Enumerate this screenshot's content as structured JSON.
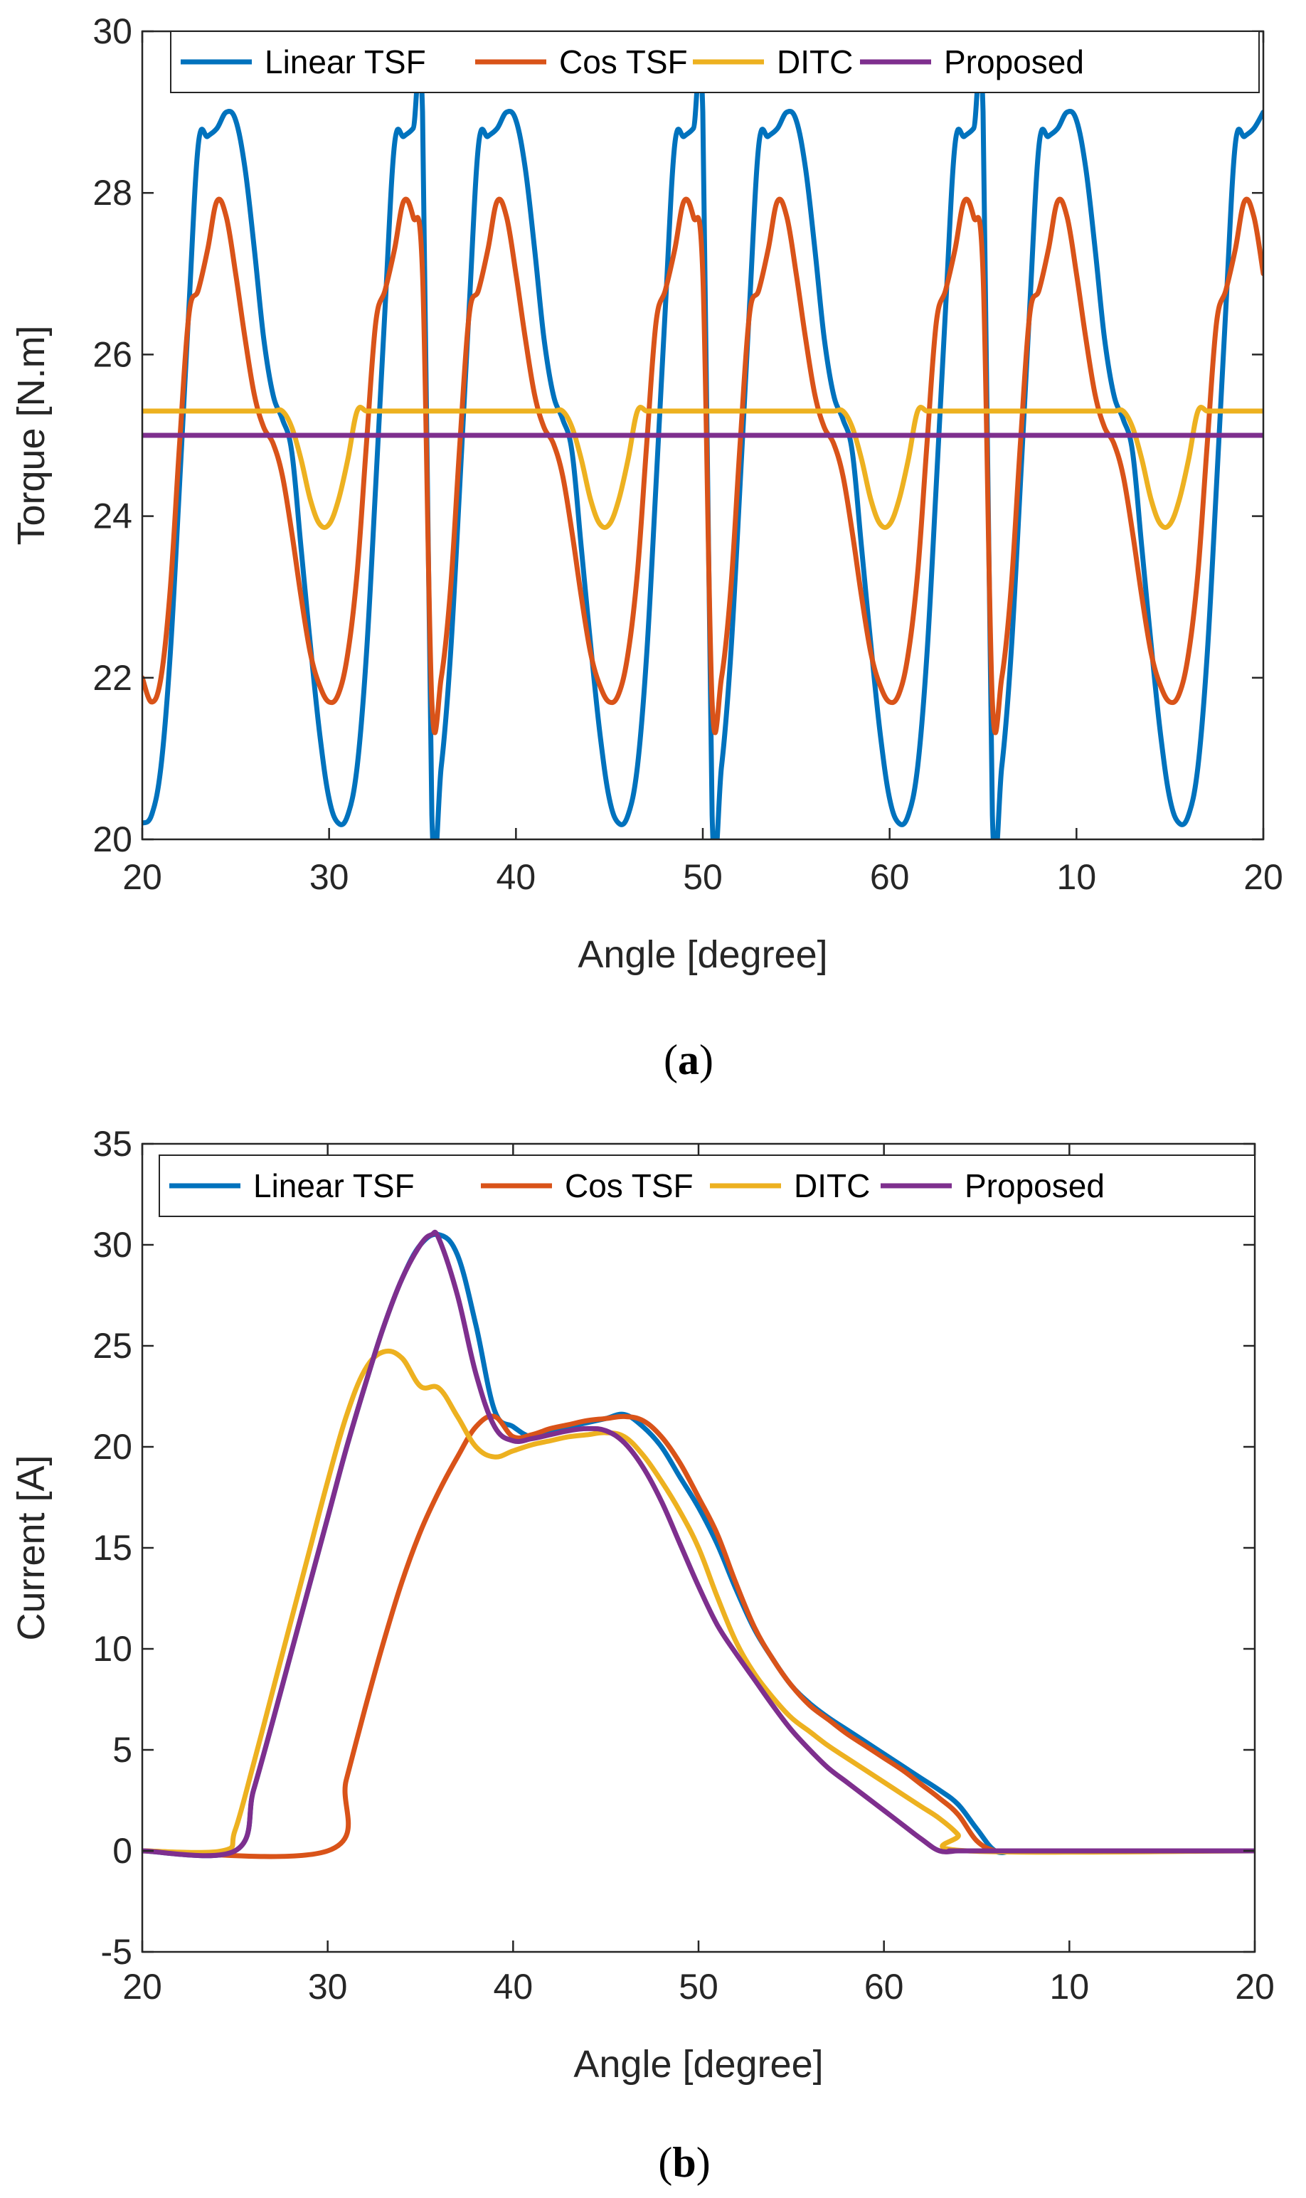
{
  "colors": {
    "linear": "#0072BD",
    "cos": "#D95319",
    "ditc": "#EDB120",
    "proposed": "#7E2F8E"
  },
  "chart_data": [
    {
      "panel_label": "a",
      "caption_open": "(",
      "caption_close": ")",
      "type": "line",
      "xlabel": "Angle [degree]",
      "ylabel": "Torque [N.m]",
      "xlim": [
        0,
        60
      ],
      "ylim": [
        20,
        30
      ],
      "xtick_labels": [
        "20",
        "30",
        "40",
        "50",
        "60",
        "10",
        "20"
      ],
      "ytick_values": [
        20,
        22,
        24,
        26,
        28,
        30
      ],
      "ytick_labels": [
        "20",
        "22",
        "24",
        "26",
        "28",
        "30"
      ],
      "grid": false,
      "legend_position": "top",
      "series": [
        {
          "name": "Linear TSF",
          "color_key": "linear",
          "x": [
            0,
            0.5,
            1,
            1.5,
            2,
            2.5,
            3,
            3.5,
            4,
            4.5,
            5,
            5.5,
            6,
            6.5,
            7,
            7.5,
            8,
            8.5,
            9,
            9.5,
            10,
            10.5,
            11,
            11.5,
            12,
            12.5,
            13,
            13.5,
            14,
            14.5,
            15
          ],
          "y": [
            20.2,
            20.3,
            20.9,
            22.3,
            24.4,
            26.6,
            28.6,
            28.7,
            28.8,
            29.0,
            28.9,
            28.3,
            27.3,
            26.2,
            25.5,
            25.2,
            24.8,
            23.6,
            22.4,
            21.3,
            20.5,
            20.2,
            20.3,
            20.9,
            22.3,
            24.4,
            26.6,
            28.6,
            28.7,
            28.8,
            29.0
          ],
          "periodic": 15
        },
        {
          "name": "Cos TSF",
          "color_key": "cos",
          "x": [
            0,
            0.5,
            1,
            1.5,
            2,
            2.5,
            3,
            3.5,
            4,
            4.5,
            5,
            5.5,
            6,
            6.5,
            7,
            7.5,
            8,
            8.5,
            9,
            9.5,
            10,
            10.5,
            11,
            11.5,
            12,
            12.5,
            13,
            13.5,
            14,
            14.5,
            15
          ],
          "y": [
            22.0,
            21.7,
            22.0,
            23.1,
            24.9,
            26.5,
            26.8,
            27.3,
            27.9,
            27.7,
            27.0,
            26.2,
            25.5,
            25.1,
            24.9,
            24.5,
            23.8,
            23.0,
            22.3,
            21.9,
            21.7,
            21.8,
            22.3,
            23.3,
            24.9,
            26.4,
            26.8,
            27.3,
            27.9,
            27.7,
            27.0
          ],
          "periodic": 15
        },
        {
          "name": "DITC",
          "color_key": "ditc",
          "x": [
            0,
            1,
            2,
            3,
            4,
            5,
            6,
            7,
            7.5,
            8,
            8.5,
            9,
            9.5,
            10,
            10.5,
            11,
            11.5,
            12,
            12.5,
            13,
            14,
            15
          ],
          "y": [
            25.3,
            25.3,
            25.3,
            25.3,
            25.3,
            25.3,
            25.3,
            25.3,
            25.3,
            25.1,
            24.7,
            24.2,
            23.9,
            23.9,
            24.2,
            24.7,
            25.3,
            25.3,
            25.3,
            25.3,
            25.3,
            25.3
          ],
          "periodic": 15
        },
        {
          "name": "Proposed",
          "color_key": "proposed",
          "x": [
            0,
            60
          ],
          "y": [
            25.0,
            25.0
          ]
        }
      ]
    },
    {
      "panel_label": "b",
      "caption_open": "(",
      "caption_close": ")",
      "type": "line",
      "xlabel": "Angle [degree]",
      "ylabel": "Current [A]",
      "xlim": [
        0,
        60
      ],
      "ylim": [
        -5,
        35
      ],
      "xtick_labels": [
        "20",
        "30",
        "40",
        "50",
        "60",
        "10",
        "20"
      ],
      "ytick_values": [
        -5,
        0,
        5,
        10,
        15,
        20,
        25,
        30,
        35
      ],
      "ytick_labels": [
        "-5",
        "0",
        "5",
        "10",
        "15",
        "20",
        "25",
        "30",
        "35"
      ],
      "grid": false,
      "legend_position": "top",
      "series": [
        {
          "name": "Linear TSF",
          "color_key": "linear",
          "x": [
            0,
            5,
            6,
            7,
            8,
            9,
            10,
            11,
            12,
            13,
            14,
            15,
            16,
            17,
            18,
            19,
            20,
            21,
            22,
            23,
            24,
            25,
            26,
            27,
            28,
            29,
            30,
            31,
            32,
            33,
            34,
            35,
            36,
            37,
            38,
            39,
            40,
            41,
            42,
            43,
            44,
            45,
            46,
            47,
            48,
            49,
            50,
            51,
            60
          ],
          "y": [
            0,
            0,
            3.0,
            6.3,
            9.7,
            13.1,
            16.5,
            19.9,
            23.0,
            25.9,
            28.3,
            30.0,
            30.5,
            29.5,
            26.0,
            21.8,
            21.0,
            20.5,
            20.8,
            21.0,
            21.2,
            21.4,
            21.6,
            21.0,
            20.0,
            18.5,
            17.0,
            15.2,
            13.0,
            11.0,
            9.5,
            8.2,
            7.3,
            6.6,
            6.0,
            5.4,
            4.8,
            4.2,
            3.6,
            3.0,
            2.3,
            1.1,
            0,
            0,
            0,
            0,
            0,
            0,
            0
          ]
        },
        {
          "name": "Cos TSF",
          "color_key": "cos",
          "x": [
            0,
            10,
            11,
            12,
            13,
            14,
            15,
            16,
            17,
            18,
            19,
            20,
            21,
            22,
            23,
            24,
            25,
            26,
            27,
            28,
            29,
            30,
            31,
            32,
            33,
            34,
            35,
            36,
            37,
            38,
            39,
            40,
            41,
            42,
            43,
            44,
            45,
            46,
            47,
            48,
            60
          ],
          "y": [
            0,
            0,
            3.5,
            7.0,
            10.3,
            13.3,
            15.8,
            17.8,
            19.5,
            21.0,
            21.5,
            20.5,
            20.6,
            20.9,
            21.1,
            21.3,
            21.4,
            21.5,
            21.3,
            20.5,
            19.2,
            17.5,
            15.7,
            13.3,
            11.1,
            9.5,
            8.2,
            7.2,
            6.5,
            5.8,
            5.2,
            4.6,
            4.0,
            3.3,
            2.6,
            1.8,
            0.5,
            0,
            0,
            0,
            0
          ]
        },
        {
          "name": "DITC",
          "color_key": "ditc",
          "x": [
            0,
            4.3,
            5,
            6,
            7,
            8,
            9,
            10,
            11,
            12,
            13,
            14,
            15,
            16,
            17,
            18,
            19,
            20,
            21,
            22,
            23,
            24,
            25,
            26,
            27,
            28,
            29,
            30,
            31,
            32,
            33,
            34,
            35,
            36,
            37,
            38,
            39,
            40,
            41,
            42,
            43,
            44,
            44.5,
            60
          ],
          "y": [
            0,
            0,
            1.0,
            4.3,
            7.8,
            11.3,
            14.8,
            18.3,
            21.5,
            23.8,
            24.7,
            24.4,
            23.0,
            22.9,
            21.5,
            20.0,
            19.5,
            19.8,
            20.1,
            20.3,
            20.5,
            20.6,
            20.7,
            20.5,
            19.6,
            18.3,
            16.8,
            15.0,
            12.6,
            10.4,
            8.8,
            7.6,
            6.6,
            5.9,
            5.2,
            4.6,
            4.0,
            3.4,
            2.8,
            2.2,
            1.6,
            0.8,
            0,
            0
          ]
        },
        {
          "name": "Proposed",
          "color_key": "proposed",
          "x": [
            0,
            5,
            6,
            7,
            8,
            9,
            10,
            11,
            12,
            13,
            14,
            15,
            15.6,
            16,
            17,
            18,
            19,
            20,
            21,
            22,
            23,
            24,
            25,
            26,
            27,
            28,
            29,
            30,
            31,
            32,
            33,
            34,
            35,
            36,
            37,
            38,
            39,
            40,
            41,
            42,
            43,
            44,
            45,
            60
          ],
          "y": [
            0,
            0,
            3.0,
            6.3,
            9.7,
            13.1,
            16.5,
            19.9,
            23.0,
            25.9,
            28.3,
            30.0,
            30.5,
            30.3,
            27.5,
            23.6,
            21.0,
            20.3,
            20.4,
            20.6,
            20.8,
            20.9,
            20.8,
            20.2,
            19.0,
            17.3,
            15.2,
            13.1,
            11.2,
            9.8,
            8.5,
            7.2,
            6.0,
            5.0,
            4.1,
            3.4,
            2.7,
            2.0,
            1.3,
            0.6,
            0,
            0,
            0,
            0
          ]
        }
      ]
    }
  ]
}
